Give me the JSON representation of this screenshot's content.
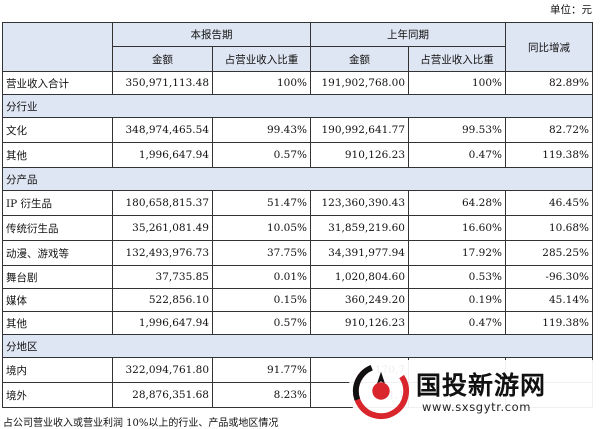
{
  "unit_label": "单位：元",
  "header": {
    "current_period": "本报告期",
    "prior_period": "上年同期",
    "yoy_change": "同比增减",
    "amount": "金额",
    "share_of_revenue": "占营业收入比重"
  },
  "total": {
    "label": "营业收入合计",
    "current_amount": "350,971,113.48",
    "current_share": "100%",
    "prior_amount": "191,902,768.00",
    "prior_share": "100%",
    "change": "82.89%"
  },
  "sections": [
    {
      "title": "分行业",
      "rows": [
        {
          "label": "文化",
          "current_amount": "348,974,465.54",
          "current_share": "99.43%",
          "prior_amount": "190,992,641.77",
          "prior_share": "99.53%",
          "change": "82.72%"
        },
        {
          "label": "其他",
          "current_amount": "1,996,647.94",
          "current_share": "0.57%",
          "prior_amount": "910,126.23",
          "prior_share": "0.47%",
          "change": "119.38%"
        }
      ]
    },
    {
      "title": "分产品",
      "rows": [
        {
          "label": "IP 衍生品",
          "current_amount": "180,658,815.37",
          "current_share": "51.47%",
          "prior_amount": "123,360,390.43",
          "prior_share": "64.28%",
          "change": "46.45%"
        },
        {
          "label": "传统衍生品",
          "current_amount": "35,261,081.49",
          "current_share": "10.05%",
          "prior_amount": "31,859,219.60",
          "prior_share": "16.60%",
          "change": "10.68%"
        },
        {
          "label": "动漫、游戏等",
          "current_amount": "132,493,976.73",
          "current_share": "37.75%",
          "prior_amount": "34,391,977.94",
          "prior_share": "17.92%",
          "change": "285.25%"
        },
        {
          "label": "舞台剧",
          "current_amount": "37,735.85",
          "current_share": "0.01%",
          "prior_amount": "1,020,804.60",
          "prior_share": "0.53%",
          "change": "-96.30%"
        },
        {
          "label": "媒体",
          "current_amount": "522,856.10",
          "current_share": "0.15%",
          "prior_amount": "360,249.20",
          "prior_share": "0.19%",
          "change": "45.14%"
        },
        {
          "label": "其他",
          "current_amount": "1,996,647.94",
          "current_share": "0.57%",
          "prior_amount": "910,126.23",
          "prior_share": "0.47%",
          "change": "119.38%"
        }
      ]
    },
    {
      "title": "分地区",
      "rows": [
        {
          "label": "境内",
          "current_amount": "322,094,761.80",
          "current_share": "91.77%",
          "prior_amount": "170,7",
          "prior_share": "",
          "change": ""
        },
        {
          "label": "境外",
          "current_amount": "28,876,351.68",
          "current_share": "8.23%",
          "prior_amount": "21,1",
          "prior_share": "",
          "change": ""
        }
      ]
    }
  ],
  "footnote": "占公司营业收入或营业利润 10%以上的行业、产品或地区情况",
  "watermark": {
    "name": "国投新游网",
    "url": "www.sxsgytr.com",
    "colors": {
      "red": "#d8262c",
      "black": "#111111"
    }
  }
}
